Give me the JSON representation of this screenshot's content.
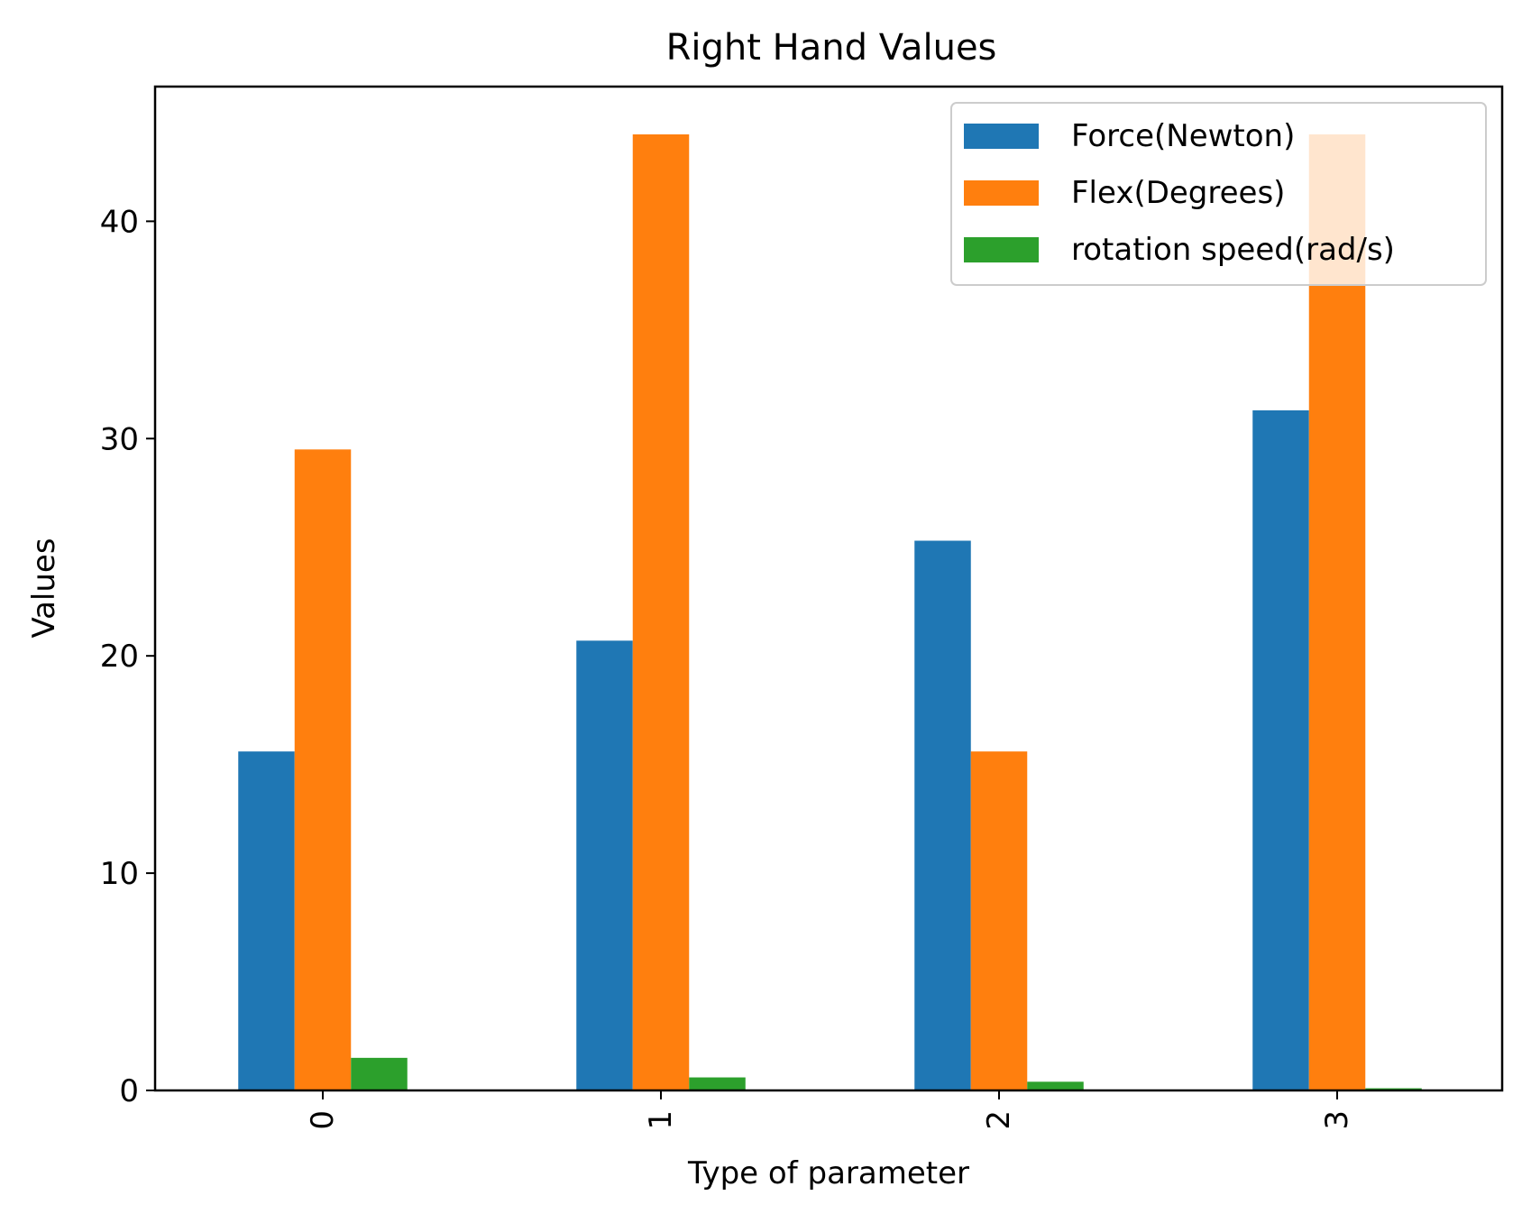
{
  "chart_data": {
    "type": "bar",
    "title": "Right Hand Values",
    "xlabel": "Type of parameter",
    "ylabel": "Values",
    "categories": [
      "0",
      "1",
      "2",
      "3"
    ],
    "series": [
      {
        "name": "Force(Newton)",
        "color": "#1f77b4",
        "values": [
          15.6,
          20.7,
          25.3,
          31.3
        ]
      },
      {
        "name": "Flex(Degrees)",
        "color": "#ff7f0e",
        "values": [
          29.5,
          44.0,
          15.6,
          44.0
        ]
      },
      {
        "name": "rotation speed(rad/s)",
        "color": "#2ca02c",
        "values": [
          1.5,
          0.6,
          0.4,
          0.1
        ]
      }
    ],
    "ylim": [
      0,
      46.2
    ],
    "yticks": [
      0,
      10,
      20,
      30,
      40
    ],
    "grid": false,
    "legend_position": "top-right",
    "xtick_rotation": "vertical"
  }
}
